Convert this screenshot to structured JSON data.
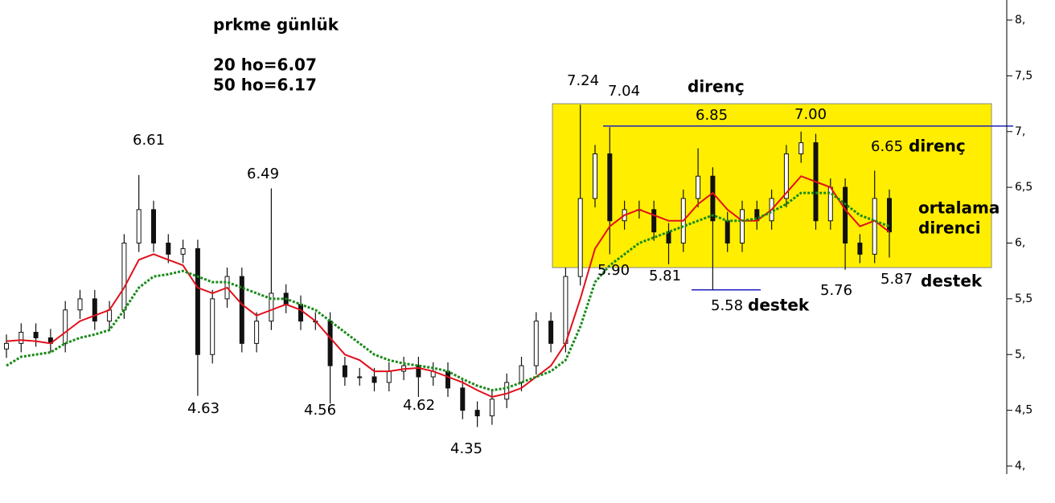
{
  "chart_data": {
    "type": "candlestick",
    "title": "prkme günlük",
    "annotations": [
      "20 ho=6.07",
      "50 ho=6.17",
      "6.61",
      "6.49",
      "4.63",
      "4.56",
      "4.62",
      "4.35",
      "7.24",
      "7.04",
      "direnç",
      "6.85",
      "7.00",
      "6.65",
      "direnç",
      "ortalama",
      "direnci",
      "5.90",
      "5.81",
      "5.58",
      "destek",
      "5.76",
      "5.87",
      "destek"
    ],
    "ylim": [
      4,
      8.2
    ],
    "yticks": [
      {
        "value": 4,
        "label": "4,"
      },
      {
        "value": 4.5,
        "label": "4,5"
      },
      {
        "value": 5,
        "label": "5,"
      },
      {
        "value": 5.5,
        "label": "5,5"
      },
      {
        "value": 6,
        "label": "6,"
      },
      {
        "value": 6.5,
        "label": "6,5"
      },
      {
        "value": 7,
        "label": "7,"
      },
      {
        "value": 7.5,
        "label": "7,5"
      },
      {
        "value": 8,
        "label": "8,"
      }
    ],
    "range_box": [
      5.78,
      7.25
    ],
    "range_box_color": "#ffee00",
    "resistance": 7.05,
    "support": 5.58,
    "level_color": "#1f1fbf",
    "candle_color": "#111111",
    "open": [
      5.05,
      5.1,
      5.2,
      5.15,
      5.1,
      5.4,
      5.5,
      5.3,
      5.4,
      6.0,
      6.3,
      6.0,
      5.9,
      5.95,
      5.0,
      5.5,
      5.7,
      5.1,
      5.3,
      5.55,
      5.45,
      5.3,
      5.3,
      4.9,
      4.8,
      4.8,
      4.75,
      4.85,
      4.9,
      4.8,
      4.85,
      4.7,
      4.5,
      4.45,
      4.6,
      4.75,
      4.9,
      5.3,
      5.1,
      5.7,
      6.4,
      6.8,
      6.2,
      6.3,
      6.3,
      6.1,
      6.0,
      6.4,
      6.6,
      6.2,
      6.0,
      6.3,
      6.2,
      6.4,
      6.8,
      6.9,
      6.2,
      6.5,
      6.0,
      5.9,
      6.4
    ],
    "high": [
      5.18,
      5.28,
      5.28,
      5.23,
      5.48,
      5.58,
      5.58,
      5.48,
      6.08,
      6.61,
      6.38,
      6.08,
      6.03,
      6.03,
      5.58,
      5.78,
      5.78,
      5.38,
      6.49,
      5.63,
      5.53,
      5.38,
      5.38,
      4.98,
      4.88,
      4.88,
      4.93,
      4.98,
      4.98,
      4.93,
      4.93,
      4.78,
      4.58,
      4.68,
      4.83,
      4.98,
      5.38,
      5.38,
      5.78,
      7.24,
      6.88,
      7.04,
      6.38,
      6.38,
      6.38,
      6.18,
      6.48,
      6.85,
      6.68,
      6.28,
      6.38,
      6.38,
      6.48,
      6.88,
      7.0,
      6.98,
      6.58,
      6.58,
      6.08,
      6.65,
      6.48
    ],
    "low": [
      4.97,
      5.02,
      5.07,
      5.02,
      5.02,
      5.32,
      5.22,
      5.22,
      5.32,
      5.92,
      5.92,
      5.82,
      5.82,
      4.63,
      4.92,
      5.42,
      5.02,
      5.02,
      5.22,
      5.37,
      5.22,
      5.22,
      4.56,
      4.72,
      4.72,
      4.67,
      4.67,
      4.77,
      4.62,
      4.72,
      4.62,
      4.42,
      4.35,
      4.37,
      4.52,
      4.67,
      4.82,
      5.02,
      5.02,
      5.62,
      6.32,
      5.9,
      6.12,
      6.22,
      6.02,
      5.81,
      5.92,
      6.32,
      5.58,
      5.92,
      5.92,
      6.12,
      6.12,
      6.32,
      6.72,
      6.12,
      6.12,
      5.76,
      5.82,
      5.82,
      5.87
    ],
    "close": [
      5.1,
      5.2,
      5.15,
      5.1,
      5.4,
      5.5,
      5.3,
      5.4,
      6.0,
      6.3,
      6.0,
      5.9,
      5.95,
      5.0,
      5.5,
      5.7,
      5.1,
      5.3,
      5.55,
      5.45,
      5.3,
      5.3,
      4.9,
      4.8,
      4.8,
      4.75,
      4.85,
      4.9,
      4.8,
      4.85,
      4.7,
      4.5,
      4.45,
      4.6,
      4.75,
      4.9,
      5.3,
      5.1,
      5.7,
      6.4,
      6.8,
      6.2,
      6.3,
      6.3,
      6.1,
      6.0,
      6.4,
      6.6,
      6.2,
      6.0,
      6.3,
      6.2,
      6.4,
      6.8,
      6.9,
      6.2,
      6.5,
      6.0,
      5.9,
      6.4,
      6.1
    ],
    "series": [
      {
        "color": "#e0101a",
        "values": [
          5.12,
          5.13,
          5.12,
          5.1,
          5.2,
          5.3,
          5.35,
          5.4,
          5.6,
          5.85,
          5.9,
          5.85,
          5.8,
          5.6,
          5.55,
          5.6,
          5.45,
          5.35,
          5.4,
          5.45,
          5.4,
          5.3,
          5.15,
          5.0,
          4.95,
          4.85,
          4.85,
          4.87,
          4.88,
          4.85,
          4.8,
          4.75,
          4.68,
          4.62,
          4.65,
          4.7,
          4.8,
          4.9,
          5.1,
          5.5,
          5.95,
          6.15,
          6.25,
          6.3,
          6.25,
          6.2,
          6.2,
          6.35,
          6.45,
          6.3,
          6.2,
          6.2,
          6.3,
          6.45,
          6.6,
          6.55,
          6.5,
          6.3,
          6.15,
          6.2,
          6.1
        ]
      },
      {
        "color": "#1a8a1a",
        "dotted": true,
        "values": [
          4.9,
          4.98,
          5.0,
          5.02,
          5.1,
          5.15,
          5.18,
          5.22,
          5.4,
          5.6,
          5.7,
          5.72,
          5.75,
          5.7,
          5.65,
          5.65,
          5.6,
          5.55,
          5.5,
          5.5,
          5.45,
          5.4,
          5.3,
          5.2,
          5.1,
          5.0,
          4.95,
          4.92,
          4.9,
          4.88,
          4.85,
          4.78,
          4.72,
          4.68,
          4.7,
          4.75,
          4.8,
          4.85,
          4.95,
          5.25,
          5.65,
          5.8,
          5.9,
          6.0,
          6.05,
          6.1,
          6.15,
          6.2,
          6.25,
          6.2,
          6.2,
          6.22,
          6.28,
          6.35,
          6.45,
          6.45,
          6.45,
          6.35,
          6.25,
          6.2,
          6.15
        ]
      }
    ]
  }
}
